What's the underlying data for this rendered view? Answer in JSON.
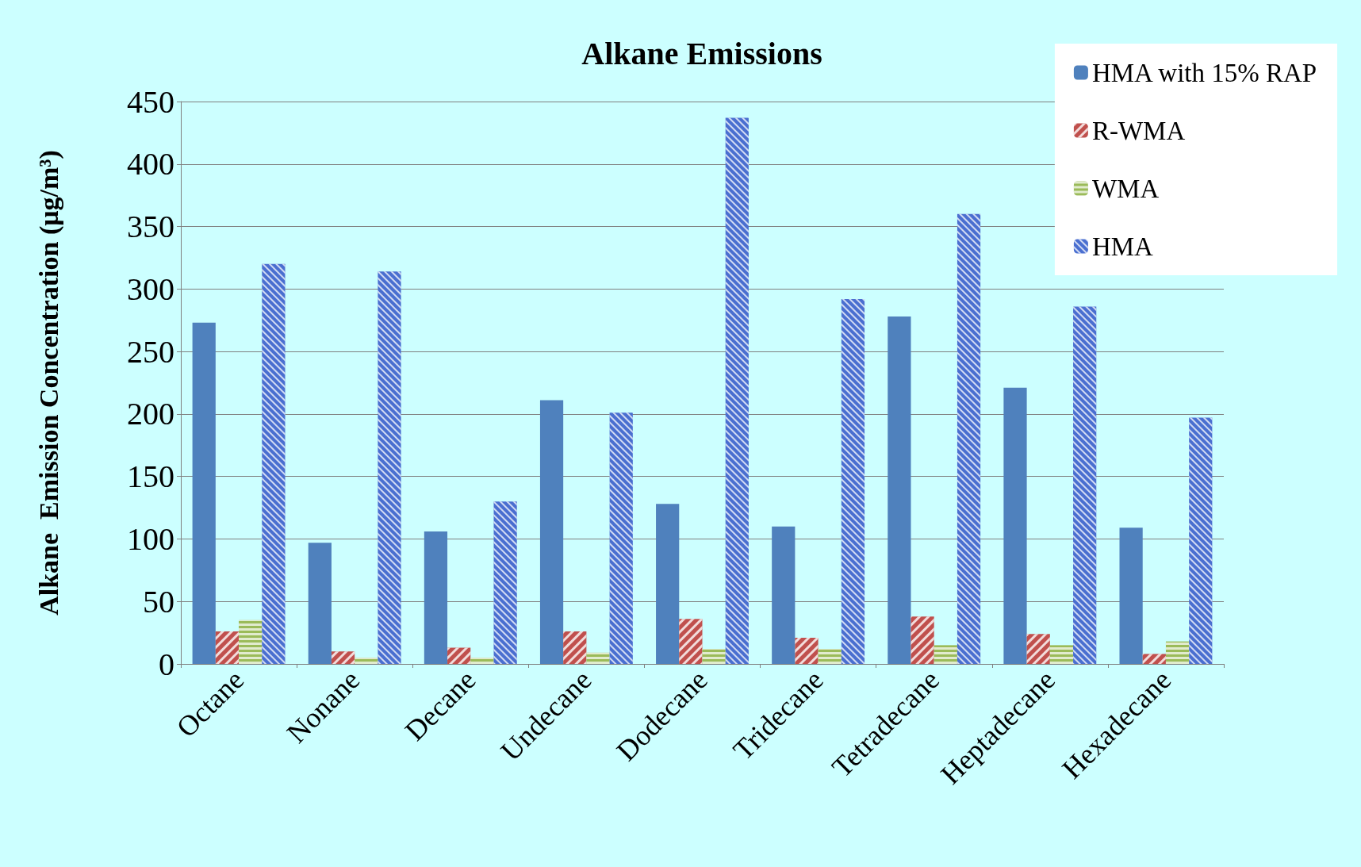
{
  "chart_data": {
    "type": "bar",
    "title": "Alkane Emissions",
    "ylabel": "Alkane  Emission Concentration (μg/m³)",
    "categories": [
      "Octane",
      "Nonane",
      "Decane",
      "Undecane",
      "Dodecane",
      "Tridecane",
      "Tetradecane",
      "Heptadecane",
      "Hexadecane"
    ],
    "series": [
      {
        "name": "HMA with 15% RAP",
        "color": "#4f81bd",
        "values": [
          273,
          97,
          106,
          211,
          128,
          110,
          278,
          221,
          109
        ]
      },
      {
        "name": "R-WMA",
        "color": "#c0504d",
        "values": [
          26,
          10,
          13,
          26,
          36,
          21,
          38,
          24,
          8
        ]
      },
      {
        "name": "WMA",
        "color": "#9bbb59",
        "values": [
          35,
          5,
          5,
          9,
          12,
          12,
          15,
          15,
          18
        ]
      },
      {
        "name": "HMA",
        "color": "#4a6fd0",
        "values": [
          320,
          314,
          130,
          201,
          437,
          292,
          360,
          286,
          197
        ]
      }
    ],
    "ylim": [
      0,
      450
    ],
    "yticks": [
      0,
      50,
      100,
      150,
      200,
      250,
      300,
      350,
      400,
      450
    ],
    "grid": "y",
    "legend": "top right"
  }
}
